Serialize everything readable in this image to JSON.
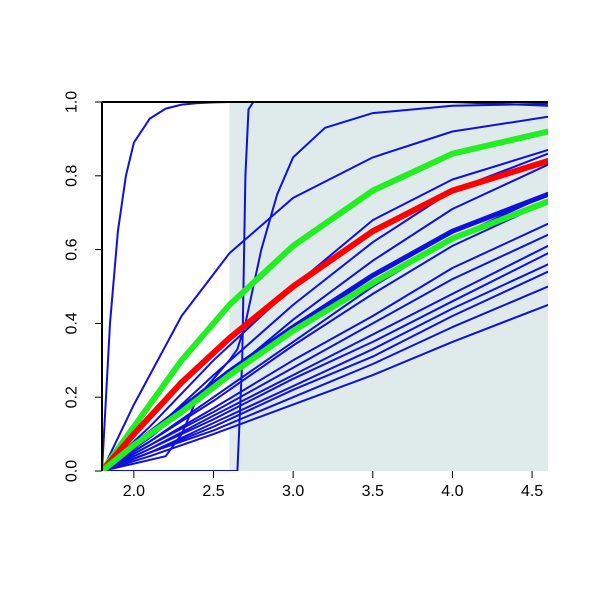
{
  "chart_data": {
    "type": "line",
    "title": "",
    "xlabel": "",
    "ylabel": "",
    "xlim": [
      1.8,
      4.6
    ],
    "ylim": [
      0.0,
      1.0
    ],
    "x_ticks": [
      2.0,
      2.5,
      3.0,
      3.5,
      4.0,
      4.5
    ],
    "x_tick_labels": [
      "2.0",
      "2.5",
      "3.0",
      "3.5",
      "4.0",
      "4.5"
    ],
    "y_ticks": [
      0.0,
      0.2,
      0.4,
      0.6,
      0.8,
      1.0
    ],
    "y_tick_labels": [
      "0.0",
      "0.2",
      "0.4",
      "0.6",
      "0.8",
      "1.0"
    ],
    "grid": false,
    "legend": "none",
    "shaded_region": {
      "x_start": 2.6,
      "x_end": 4.6,
      "color": "#dfeaea"
    },
    "colors": {
      "blue": "#1010dd",
      "red": "#ff0000",
      "green": "#22ee22"
    },
    "series": [
      {
        "color": "blue",
        "width": 2,
        "x": [
          1.8,
          1.85,
          1.9,
          1.95,
          2.0,
          2.1,
          2.2,
          2.3,
          2.4,
          2.5,
          2.6,
          2.8,
          3.0,
          3.5,
          4.0,
          4.6
        ],
        "y": [
          0.0,
          0.4,
          0.65,
          0.8,
          0.89,
          0.955,
          0.982,
          0.993,
          0.997,
          0.999,
          1.0,
          1.0,
          1.0,
          1.0,
          1.0,
          1.0
        ]
      },
      {
        "color": "blue",
        "width": 2,
        "x": [
          1.8,
          2.65,
          2.68,
          2.7,
          2.72,
          2.75,
          3.0,
          3.5,
          4.0,
          4.6
        ],
        "y": [
          0.0,
          0.0,
          0.3,
          0.8,
          0.98,
          1.0,
          1.0,
          1.0,
          1.0,
          0.99
        ]
      },
      {
        "color": "blue",
        "width": 2,
        "x": [
          1.8,
          2.0,
          2.2,
          2.3,
          2.4,
          2.5,
          2.6,
          2.65,
          2.7,
          2.8,
          2.9,
          3.0,
          3.2,
          3.5,
          4.0,
          4.6
        ],
        "y": [
          0.0,
          0.02,
          0.04,
          0.1,
          0.2,
          0.25,
          0.3,
          0.33,
          0.4,
          0.6,
          0.75,
          0.85,
          0.93,
          0.97,
          0.99,
          0.995
        ]
      },
      {
        "color": "blue",
        "width": 2,
        "x": [
          1.8,
          2.0,
          2.3,
          2.6,
          3.0,
          3.5,
          4.0,
          4.6
        ],
        "y": [
          0.0,
          0.18,
          0.42,
          0.59,
          0.74,
          0.85,
          0.92,
          0.96
        ]
      },
      {
        "color": "blue",
        "width": 2,
        "x": [
          1.8,
          2.1,
          2.5,
          3.0,
          3.5,
          4.0,
          4.6
        ],
        "y": [
          0.0,
          0.12,
          0.3,
          0.5,
          0.68,
          0.79,
          0.87
        ]
      },
      {
        "color": "blue",
        "width": 2,
        "x": [
          1.8,
          2.1,
          2.5,
          3.0,
          3.5,
          4.0,
          4.6
        ],
        "y": [
          0.0,
          0.1,
          0.26,
          0.45,
          0.62,
          0.76,
          0.86
        ]
      },
      {
        "color": "blue",
        "width": 2,
        "x": [
          1.8,
          2.1,
          2.5,
          3.0,
          3.5,
          4.0,
          4.6
        ],
        "y": [
          0.0,
          0.09,
          0.23,
          0.41,
          0.57,
          0.71,
          0.83
        ]
      },
      {
        "color": "blue",
        "width": 2,
        "x": [
          1.8,
          2.1,
          2.5,
          3.0,
          3.5,
          4.0,
          4.6
        ],
        "y": [
          0.0,
          0.08,
          0.2,
          0.35,
          0.5,
          0.63,
          0.75
        ]
      },
      {
        "color": "blue",
        "width": 2,
        "x": [
          1.8,
          2.1,
          2.5,
          3.0,
          3.5,
          4.0,
          4.6
        ],
        "y": [
          0.0,
          0.08,
          0.19,
          0.34,
          0.48,
          0.61,
          0.73
        ]
      },
      {
        "color": "blue",
        "width": 2,
        "x": [
          1.8,
          2.1,
          2.5,
          3.0,
          3.5,
          4.0,
          4.6
        ],
        "y": [
          0.0,
          0.07,
          0.17,
          0.3,
          0.42,
          0.55,
          0.67
        ]
      },
      {
        "color": "blue",
        "width": 2,
        "x": [
          1.8,
          2.1,
          2.5,
          3.0,
          3.5,
          4.0,
          4.6
        ],
        "y": [
          0.0,
          0.07,
          0.16,
          0.28,
          0.4,
          0.52,
          0.64
        ]
      },
      {
        "color": "blue",
        "width": 2,
        "x": [
          1.8,
          2.1,
          2.5,
          3.0,
          3.5,
          4.0,
          4.6
        ],
        "y": [
          0.0,
          0.06,
          0.15,
          0.26,
          0.37,
          0.48,
          0.61
        ]
      },
      {
        "color": "blue",
        "width": 2,
        "x": [
          1.8,
          2.1,
          2.5,
          3.0,
          3.5,
          4.0,
          4.6
        ],
        "y": [
          0.0,
          0.06,
          0.14,
          0.25,
          0.35,
          0.46,
          0.59
        ]
      },
      {
        "color": "blue",
        "width": 2,
        "x": [
          1.8,
          2.1,
          2.5,
          3.0,
          3.5,
          4.0,
          4.6
        ],
        "y": [
          0.0,
          0.05,
          0.13,
          0.23,
          0.33,
          0.44,
          0.56
        ]
      },
      {
        "color": "blue",
        "width": 2,
        "x": [
          1.8,
          2.1,
          2.5,
          3.0,
          3.5,
          4.0,
          4.6
        ],
        "y": [
          0.0,
          0.05,
          0.12,
          0.22,
          0.31,
          0.42,
          0.54
        ]
      },
      {
        "color": "blue",
        "width": 2,
        "x": [
          1.8,
          2.1,
          2.5,
          3.0,
          3.5,
          4.0,
          4.6
        ],
        "y": [
          0.0,
          0.05,
          0.11,
          0.2,
          0.29,
          0.39,
          0.5
        ]
      },
      {
        "color": "blue",
        "width": 2,
        "x": [
          1.8,
          2.1,
          2.5,
          3.0,
          3.5,
          4.0,
          4.6
        ],
        "y": [
          0.0,
          0.04,
          0.1,
          0.18,
          0.26,
          0.35,
          0.45
        ]
      },
      {
        "color": "green",
        "width": 6,
        "x": [
          1.8,
          2.0,
          2.3,
          2.6,
          3.0,
          3.5,
          4.0,
          4.6
        ],
        "y": [
          0.0,
          0.12,
          0.3,
          0.45,
          0.61,
          0.76,
          0.86,
          0.92
        ]
      },
      {
        "color": "red",
        "width": 6,
        "x": [
          1.8,
          2.0,
          2.3,
          2.6,
          3.0,
          3.5,
          4.0,
          4.6
        ],
        "y": [
          0.0,
          0.1,
          0.24,
          0.36,
          0.5,
          0.65,
          0.76,
          0.84
        ]
      },
      {
        "color": "blue",
        "width": 5,
        "x": [
          1.8,
          2.0,
          2.3,
          2.6,
          3.0,
          3.5,
          4.0,
          4.6
        ],
        "y": [
          0.0,
          0.07,
          0.17,
          0.27,
          0.39,
          0.53,
          0.65,
          0.75
        ]
      },
      {
        "color": "green",
        "width": 6,
        "x": [
          1.8,
          2.0,
          2.3,
          2.6,
          3.0,
          3.5,
          4.0,
          4.6
        ],
        "y": [
          0.0,
          0.07,
          0.16,
          0.26,
          0.38,
          0.51,
          0.63,
          0.73
        ]
      }
    ]
  }
}
